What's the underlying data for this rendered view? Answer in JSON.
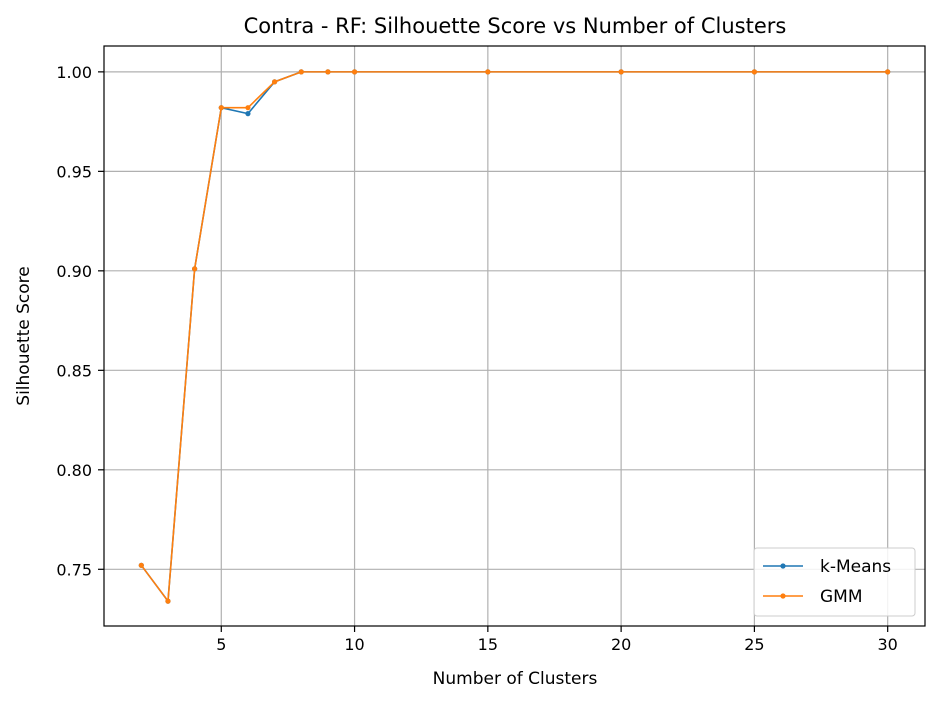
{
  "chart_data": {
    "type": "line",
    "title": "Contra - RF: Silhouette Score vs Number of Clusters",
    "xlabel": "Number of Clusters",
    "ylabel": "Silhouette Score",
    "xlim": [
      0.6,
      31.4
    ],
    "ylim": [
      0.7215,
      1.013
    ],
    "xticks": [
      5,
      10,
      15,
      20,
      25,
      30
    ],
    "yticks": [
      0.75,
      0.8,
      0.85,
      0.9,
      0.95,
      1.0
    ],
    "ytick_labels": [
      "0.75",
      "0.80",
      "0.85",
      "0.90",
      "0.95",
      "1.00"
    ],
    "grid": true,
    "legend_position": "lower-right",
    "x": [
      2,
      3,
      4,
      5,
      6,
      7,
      8,
      9,
      10,
      15,
      20,
      25,
      30
    ],
    "series": [
      {
        "name": "k-Means",
        "color": "#1f77b4",
        "values": [
          0.752,
          0.734,
          0.901,
          0.982,
          0.979,
          0.995,
          1.0,
          1.0,
          1.0,
          1.0,
          1.0,
          1.0,
          1.0
        ]
      },
      {
        "name": "GMM",
        "color": "#ff7f0e",
        "values": [
          0.752,
          0.734,
          0.901,
          0.982,
          0.982,
          0.995,
          1.0,
          1.0,
          1.0,
          1.0,
          1.0,
          1.0,
          1.0
        ]
      }
    ]
  }
}
